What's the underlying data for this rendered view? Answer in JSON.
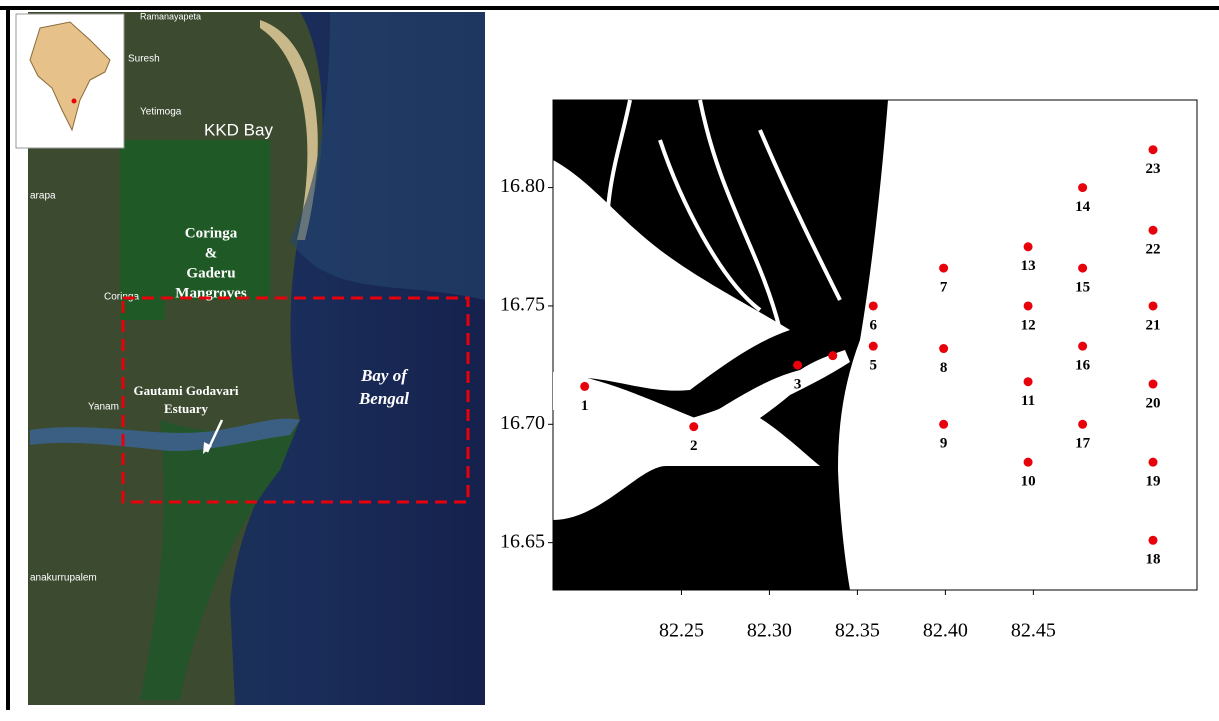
{
  "map": {
    "labels": [
      "Ramanayapeta",
      "Suresh",
      "Yetimoga",
      "KKD Bay",
      "Coringa",
      "&",
      "Gaderu",
      "Mangroves",
      "Coringa",
      "Gautami Godavari",
      "Estuary",
      "Bay of",
      "Bengal",
      "Yanam",
      "arapa",
      "anakurrupalem"
    ]
  },
  "chart_data": {
    "type": "scatter",
    "x": [
      82.195,
      82.257,
      82.316,
      82.336,
      82.359,
      82.359,
      82.399,
      82.399,
      82.399,
      82.447,
      82.447,
      82.447,
      82.447,
      82.478,
      82.478,
      82.478,
      82.478,
      82.518,
      82.518,
      82.518,
      82.518,
      82.518,
      82.518
    ],
    "y": [
      16.716,
      16.699,
      16.725,
      16.729,
      16.733,
      16.75,
      16.766,
      16.732,
      16.7,
      16.684,
      16.718,
      16.75,
      16.775,
      16.8,
      16.766,
      16.733,
      16.7,
      16.651,
      16.684,
      16.717,
      16.75,
      16.782,
      16.816
    ],
    "point_labels": [
      "1",
      "2",
      "3",
      null,
      "5",
      "6",
      "7",
      "8",
      "9",
      "10",
      "11",
      "12",
      "13",
      "14",
      "15",
      "16",
      "17",
      "18",
      "19",
      "20",
      "21",
      "22",
      "23"
    ],
    "color": "#e8000b",
    "xlim": [
      82.177,
      82.543
    ],
    "ylim": [
      16.63,
      16.837
    ],
    "xticks": [
      82.25,
      {
        "value": 82.3,
        "label": "82.30"
      },
      82.35,
      {
        "value": 82.4,
        "label": "82.40"
      },
      82.45
    ],
    "yticks": [
      16.65,
      {
        "value": 16.7,
        "label": "16.70"
      },
      16.75,
      {
        "value": 16.8,
        "label": "16.80"
      }
    ]
  }
}
